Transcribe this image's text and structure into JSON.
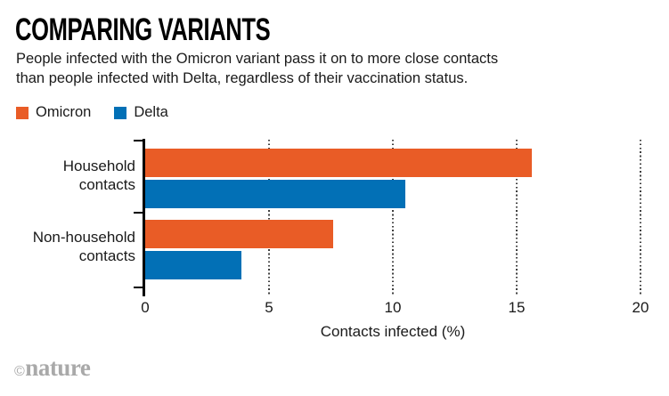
{
  "title": "COMPARING VARIANTS",
  "subtitle": {
    "line1": "People infected with the Omicron variant pass it on to more close contacts",
    "line2": "than people infected with Delta, regardless of their vaccination status."
  },
  "legend": {
    "items": [
      {
        "label": "Omicron",
        "color": "#E95C26"
      },
      {
        "label": "Delta",
        "color": "#0270B6"
      }
    ]
  },
  "chart_data": {
    "type": "bar",
    "orientation": "horizontal",
    "title": "COMPARING VARIANTS",
    "categories": [
      "Household contacts",
      "Non-household contacts"
    ],
    "series": [
      {
        "name": "Omicron",
        "color": "#E95C26",
        "values": [
          15.6,
          7.6
        ]
      },
      {
        "name": "Delta",
        "color": "#0270B6",
        "values": [
          10.5,
          3.9
        ]
      }
    ],
    "xlabel": "Contacts infected (%)",
    "ylabel": "",
    "xlim": [
      0,
      20
    ],
    "xticks": [
      0,
      5,
      10,
      15,
      20
    ],
    "grid": "dotted-vertical",
    "legend_position": "top-left"
  },
  "footer": {
    "credit_symbol": "©",
    "credit_name": "nature"
  }
}
